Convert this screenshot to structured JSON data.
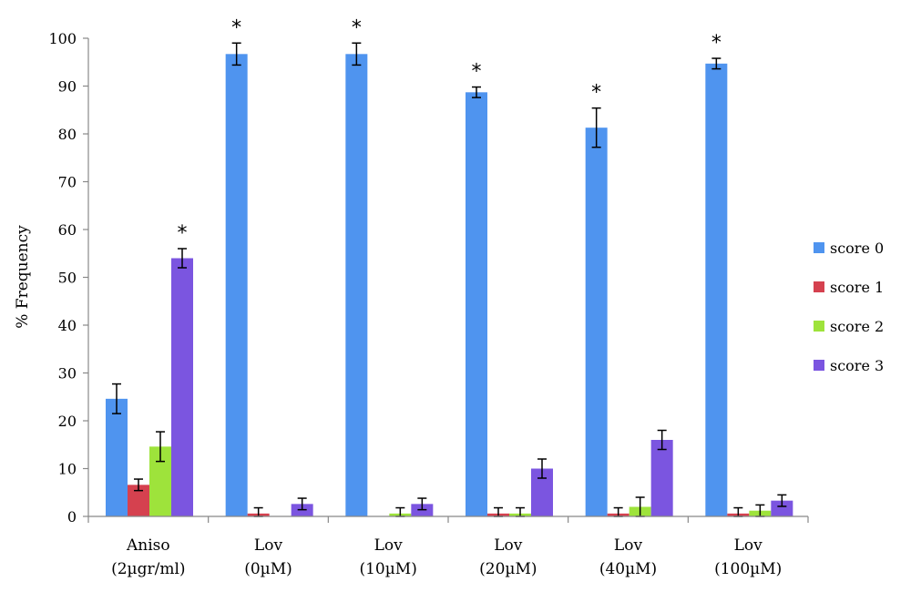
{
  "chart_data": {
    "type": "bar",
    "ylabel": "% Frequency",
    "xlabel": "",
    "ylim": [
      0,
      100
    ],
    "yticks": [
      0,
      10,
      20,
      30,
      40,
      50,
      60,
      70,
      80,
      90,
      100
    ],
    "categories": [
      [
        "Aniso",
        "(2µgr/ml)"
      ],
      [
        "Lov",
        "(0µM)"
      ],
      [
        "Lov",
        "(10µM)"
      ],
      [
        "Lov",
        "(20µM)"
      ],
      [
        "Lov",
        "(40µM)"
      ],
      [
        "Lov",
        "(100µM)"
      ]
    ],
    "series": [
      {
        "name": "score 0",
        "color": "#4f94ef",
        "values": [
          24.6,
          96.7,
          96.7,
          88.7,
          81.3,
          94.7
        ],
        "errors": [
          3.1,
          2.3,
          2.3,
          1.1,
          4.1,
          1.1
        ]
      },
      {
        "name": "score 1",
        "color": "#d5414f",
        "values": [
          6.6,
          0.6,
          0,
          0.6,
          0.6,
          0.6
        ],
        "errors": [
          1.2,
          1.2,
          0,
          1.2,
          1.2,
          1.2
        ]
      },
      {
        "name": "score 2",
        "color": "#9ee33b",
        "values": [
          14.6,
          0,
          0.6,
          0.6,
          2.0,
          1.2
        ],
        "errors": [
          3.1,
          0,
          1.2,
          1.2,
          2.0,
          1.2
        ]
      },
      {
        "name": "score 3",
        "color": "#7b55e0",
        "values": [
          54.0,
          2.6,
          2.6,
          10.0,
          16.0,
          3.3
        ],
        "errors": [
          2.0,
          1.2,
          1.2,
          2.0,
          2.0,
          1.2
        ]
      }
    ],
    "significance": [
      {
        "category": 0,
        "series": 3,
        "label": "*"
      },
      {
        "category": 1,
        "series": 0,
        "label": "*"
      },
      {
        "category": 2,
        "series": 0,
        "label": "*"
      },
      {
        "category": 3,
        "series": 0,
        "label": "*"
      },
      {
        "category": 4,
        "series": 0,
        "label": "*"
      },
      {
        "category": 5,
        "series": 0,
        "label": "*"
      }
    ],
    "grid": false,
    "legend_position": "right"
  }
}
